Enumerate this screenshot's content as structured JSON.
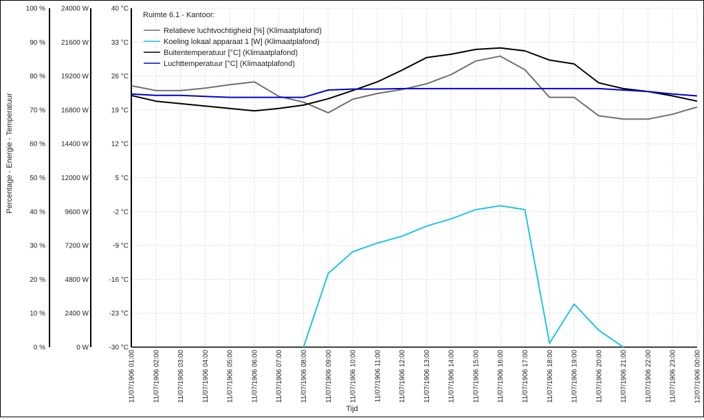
{
  "window": {
    "ylabel": "Percentage - Energie - Temperatuur",
    "xlabel": "Tijd"
  },
  "chart_data": {
    "type": "line",
    "title": "Ruimte 6.1 - Kantoor:",
    "xlabel": "Tijd",
    "ylabel": "Percentage - Energie - Temperatuur",
    "grid": true,
    "legend_position": "top-left",
    "x": [
      "11/07/1906 01:00",
      "11/07/1906 02:00",
      "11/07/1906 03:00",
      "11/07/1906 04:00",
      "11/07/1906 05:00",
      "11/07/1906 06:00",
      "11/07/1906 07:00",
      "11/07/1906 08:00",
      "11/07/1906 09:00",
      "11/07/1906 10:00",
      "11/07/1906 11:00",
      "11/07/1906 12:00",
      "11/07/1906 13:00",
      "11/07/1906 14:00",
      "11/07/1906 15:00",
      "11/07/1906 16:00",
      "11/07/1906 17:00",
      "11/07/1906 18:00",
      "11/07/1906 19:00",
      "11/07/1906 20:00",
      "11/07/1906 21:00",
      "11/07/1906 22:00",
      "11/07/1906 23:00",
      "12/07/1906 00:00"
    ],
    "axes": {
      "percent": {
        "ticks": [
          "100 %",
          "90 %",
          "80 %",
          "70 %",
          "60 %",
          "50 %",
          "40 %",
          "30 %",
          "20 %",
          "10 %",
          "0 %"
        ],
        "range": [
          0,
          100
        ]
      },
      "energy": {
        "ticks": [
          "24000 W",
          "21600 W",
          "19200 W",
          "16800 W",
          "14400 W",
          "12000 W",
          "9600 W",
          "7200 W",
          "4800 W",
          "2400 W",
          "0 W"
        ],
        "range": [
          0,
          24000
        ]
      },
      "temperature": {
        "ticks": [
          "40 °C",
          "33 °C",
          "26 °C",
          "19 °C",
          "12 °C",
          "5 °C",
          "-2 °C",
          "-9 °C",
          "-16 °C",
          "-23 °C",
          "-30 °C"
        ],
        "range": [
          -30,
          40
        ]
      }
    },
    "series": [
      {
        "name": "Relatieve luchtvochtigheid [%] (Klimaatplafond)",
        "color": "#6e6e6e",
        "axis": "temperature",
        "values": [
          24.0,
          23.0,
          23.0,
          23.5,
          24.2,
          24.8,
          21.8,
          20.6,
          18.4,
          21.2,
          22.4,
          23.2,
          24.4,
          26.3,
          29.1,
          30.1,
          27.3,
          21.6,
          21.6,
          17.8,
          17.1,
          17.1,
          18.1,
          19.6
        ]
      },
      {
        "name": "Koeling lokaal apparaat 1 [W] (Klimaatplafond)",
        "color": "#1ec3ea",
        "axis": "temperature",
        "values": [
          null,
          null,
          null,
          null,
          null,
          null,
          null,
          -30.0,
          -14.8,
          -10.3,
          -8.5,
          -7.1,
          -5.0,
          -3.5,
          -1.6,
          -0.8,
          -1.6,
          -29.2,
          -21.1,
          -26.5,
          -30.0,
          null,
          null,
          null
        ]
      },
      {
        "name": "Buitentemperatuur [°C] (Klimaatplafond)",
        "color": "#000000",
        "axis": "temperature",
        "values": [
          22.0,
          20.8,
          20.3,
          19.8,
          19.3,
          18.8,
          19.3,
          20.0,
          21.3,
          23.0,
          24.8,
          27.2,
          29.8,
          30.5,
          31.5,
          31.8,
          31.2,
          29.3,
          28.5,
          24.6,
          23.4,
          22.8,
          21.9,
          20.8
        ]
      },
      {
        "name": "Luchttemperatuur [°C] (Klimaatplafond)",
        "color": "#0000cc",
        "axis": "temperature",
        "values": [
          22.3,
          22.0,
          22.0,
          21.8,
          21.6,
          21.6,
          21.6,
          21.6,
          23.1,
          23.3,
          23.3,
          23.4,
          23.4,
          23.4,
          23.4,
          23.4,
          23.4,
          23.4,
          23.4,
          23.4,
          23.1,
          22.8,
          22.3,
          21.9
        ]
      }
    ]
  }
}
